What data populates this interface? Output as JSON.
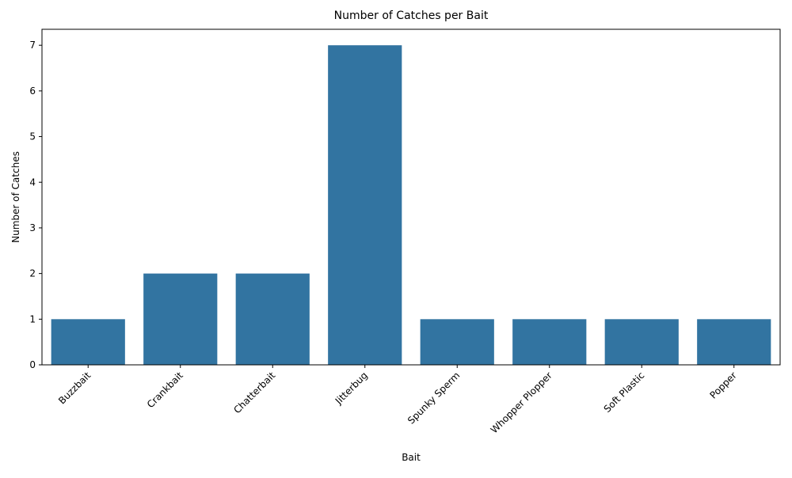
{
  "chart_data": {
    "type": "bar",
    "title": "Number of Catches per Bait",
    "xlabel": "Bait",
    "ylabel": "Number of Catches",
    "categories": [
      "Buzzbait",
      "Crankbait",
      "Chatterbait",
      "Jitterbug",
      "Spunky Sperm",
      "Whopper Plopper",
      "Soft Plastic",
      "Popper"
    ],
    "values": [
      1,
      2,
      2,
      7,
      1,
      1,
      1,
      1
    ],
    "ylim": [
      0,
      7.35
    ],
    "yticks": [
      0,
      1,
      2,
      3,
      4,
      5,
      6,
      7
    ],
    "xtick_rotation": 45,
    "grid": false,
    "legend": "none",
    "bar_color": "#3274a1"
  }
}
